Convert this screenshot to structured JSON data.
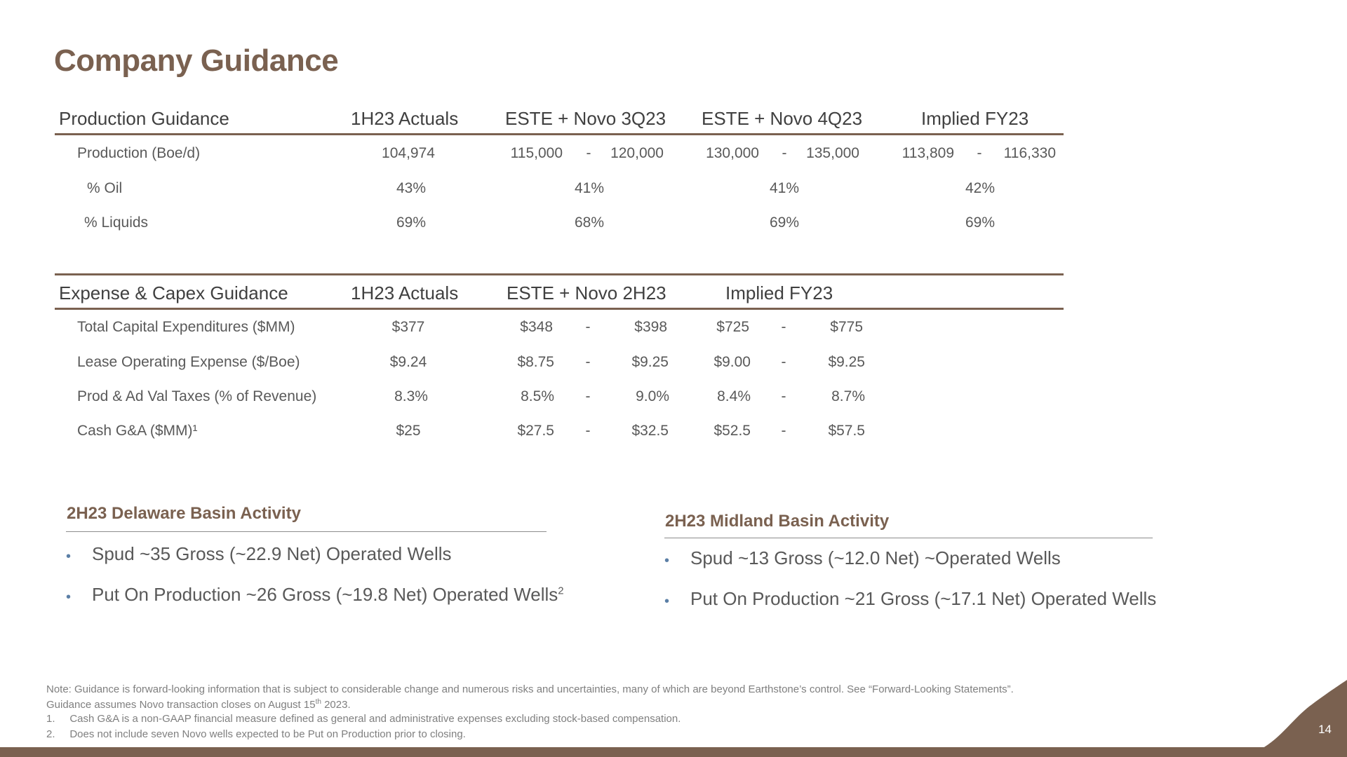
{
  "title": "Company Guidance",
  "production": {
    "headers": [
      "Production Guidance",
      "1H23 Actuals",
      "ESTE + Novo 3Q23",
      "ESTE + Novo 4Q23",
      "Implied FY23"
    ],
    "rows": [
      {
        "label": "Production (Boe/d)",
        "actual": "104,974",
        "q3_low": "115,000",
        "q3_dash": "-",
        "q3_high": "120,000",
        "q4_low": "130,000",
        "q4_dash": "-",
        "q4_high": "135,000",
        "fy_low": "113,809",
        "fy_dash": "-",
        "fy_high": "116,330"
      },
      {
        "label": "% Oil",
        "actual": "43%",
        "q3": "41%",
        "q4": "41%",
        "fy": "42%"
      },
      {
        "label": "% Liquids",
        "actual": "69%",
        "q3": "68%",
        "q4": "69%",
        "fy": "69%"
      }
    ]
  },
  "expense": {
    "headers": [
      "Expense & Capex Guidance",
      "1H23 Actuals",
      "ESTE + Novo 2H23",
      "Implied FY23"
    ],
    "rows": [
      {
        "label": "Total Capital Expenditures ($MM)",
        "actual": "$377",
        "h2_low": "$348",
        "h2_dash": "-",
        "h2_high": "$398",
        "fy_low": "$725",
        "fy_dash": "-",
        "fy_high": "$775"
      },
      {
        "label": "Lease Operating Expense ($/Boe)",
        "actual": "$9.24",
        "h2_low": "$8.75",
        "h2_dash": "-",
        "h2_high": "$9.25",
        "fy_low": "$9.00",
        "fy_dash": "-",
        "fy_high": "$9.25"
      },
      {
        "label": "Prod & Ad Val Taxes (% of Revenue)",
        "actual": "8.3%",
        "h2_low": "8.5%",
        "h2_dash": "-",
        "h2_high": "9.0%",
        "fy_low": "8.4%",
        "fy_dash": "-",
        "fy_high": "8.7%"
      },
      {
        "label": "Cash G&A ($MM)¹",
        "actual": "$25",
        "h2_low": "$27.5",
        "h2_dash": "-",
        "h2_high": "$32.5",
        "fy_low": "$52.5",
        "fy_dash": "-",
        "fy_high": "$57.5"
      }
    ]
  },
  "delaware": {
    "title": "2H23 Delaware Basin Activity",
    "bullet_char": "•",
    "bullets": [
      "Spud ~35 Gross (~22.9 Net)  Operated Wells",
      "Put On Production ~26 Gross (~19.8 Net) Operated Wells"
    ],
    "footnote_mark": "2"
  },
  "midland": {
    "title": "2H23 Midland Basin Activity",
    "bullet_char": "•",
    "bullets": [
      "Spud ~13 Gross (~12.0 Net) ~Operated Wells",
      "Put On Production ~21 Gross (~17.1 Net) Operated Wells"
    ]
  },
  "notes": [
    "Note: Guidance is forward-looking information that is subject to considerable change and numerous risks and uncertainties, many of which are beyond Earthstone’s control. See “Forward-Looking Statements”.",
    "Guidance assumes Novo transaction closes on August 15",
    "1.     Cash G&A is a non-GAAP financial measure defined as general and administrative expenses excluding stock-based compensation.",
    "2.     Does not include seven Novo wells expected to be Put on Production prior to closing."
  ],
  "note_date_sup": "th",
  "note_date_tail": " 2023.",
  "page_number": "14",
  "colors": {
    "accent": "#7a6150",
    "bullet": "#5b7fa6",
    "text": "#595959"
  }
}
